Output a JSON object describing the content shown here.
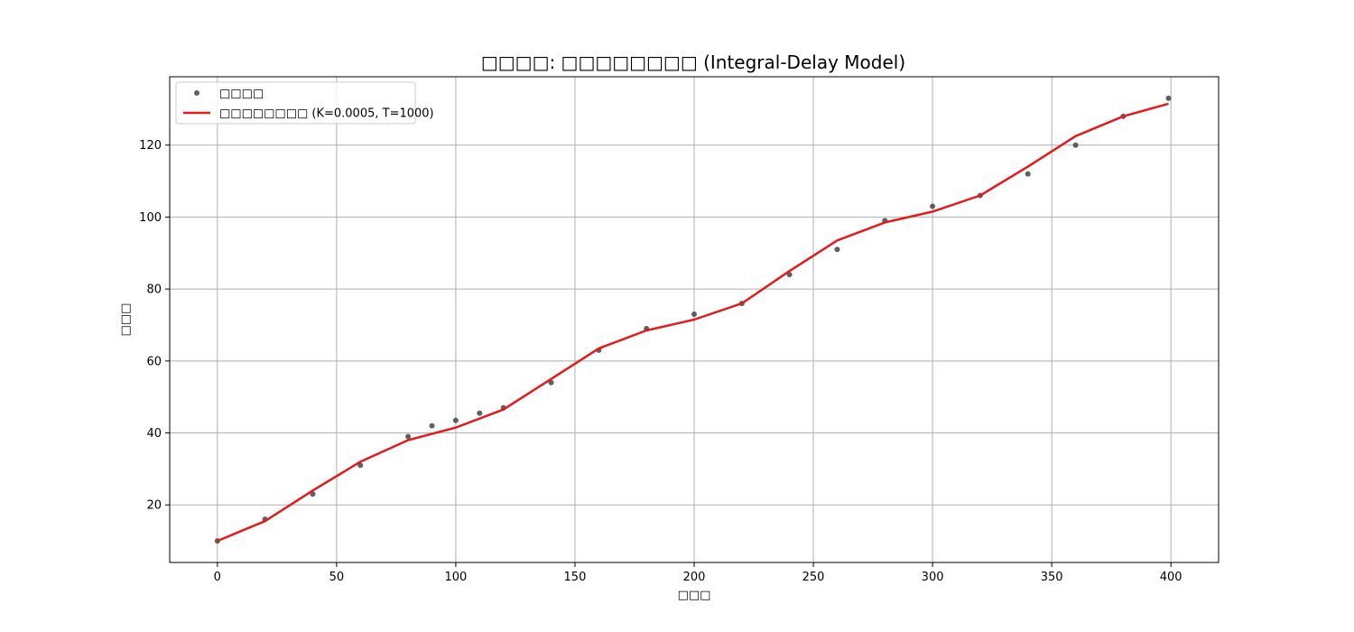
{
  "chart_data": {
    "type": "scatter+line",
    "title": "□□□□: □□□□□□□□ (Integral-Delay Model)",
    "xlabel": "□□□",
    "ylabel": "□□□",
    "xlim": [
      -20,
      420
    ],
    "ylim": [
      4,
      139
    ],
    "xticks": [
      0,
      50,
      100,
      150,
      200,
      250,
      300,
      350,
      400
    ],
    "yticks": [
      20,
      40,
      60,
      80,
      100,
      120
    ],
    "grid": true,
    "legend_position": "top-left",
    "series": [
      {
        "name": "□□□□",
        "kind": "scatter",
        "color": "#444444",
        "x": [
          0,
          20,
          40,
          60,
          80,
          90,
          100,
          110,
          120,
          140,
          160,
          180,
          200,
          220,
          240,
          260,
          280,
          300,
          320,
          340,
          360,
          380,
          399
        ],
        "y": [
          10,
          16,
          23,
          31,
          39,
          42,
          43.5,
          45.5,
          47,
          54,
          63,
          69,
          73,
          76,
          84,
          91,
          99,
          103,
          106,
          112,
          120,
          128,
          133
        ]
      },
      {
        "name": "□□□□□□□□ (K=0.0005, T=1000)",
        "kind": "line",
        "color": "#e41a1c",
        "x": [
          0,
          20,
          40,
          60,
          80,
          100,
          120,
          140,
          160,
          180,
          200,
          220,
          240,
          260,
          280,
          300,
          320,
          340,
          360,
          380,
          399
        ],
        "y": [
          10,
          15.5,
          24,
          32,
          38,
          41.5,
          46.5,
          55,
          63.5,
          68.5,
          71.5,
          76,
          85,
          93.5,
          98.5,
          101.5,
          106,
          114,
          122.5,
          128,
          131.5
        ]
      }
    ]
  }
}
